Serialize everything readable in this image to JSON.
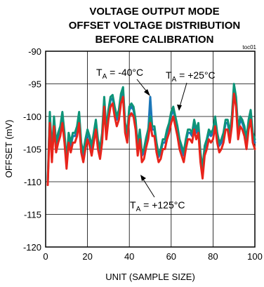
{
  "chart_data": {
    "type": "line",
    "title_lines": [
      "VOLTAGE OUTPUT MODE",
      "OFFSET VOLTAGE DISTRIBUTION",
      "BEFORE CALIBRATION"
    ],
    "note": "toc01",
    "xlabel": "UNIT (SAMPLE SIZE)",
    "ylabel": "OFFSET (mV)",
    "xlim": [
      0,
      100
    ],
    "ylim": [
      -120,
      -90
    ],
    "x_ticks": [
      0,
      20,
      40,
      60,
      80,
      100
    ],
    "y_ticks": [
      -90,
      -95,
      -100,
      -105,
      -110,
      -115,
      -120
    ],
    "grid": true,
    "x": [
      1,
      2,
      3,
      4,
      5,
      6,
      7,
      8,
      9,
      10,
      11,
      12,
      13,
      14,
      15,
      16,
      17,
      18,
      19,
      20,
      21,
      22,
      23,
      24,
      25,
      26,
      27,
      28,
      29,
      30,
      31,
      32,
      33,
      34,
      35,
      36,
      37,
      38,
      39,
      40,
      41,
      42,
      43,
      44,
      45,
      46,
      47,
      48,
      49,
      50,
      51,
      52,
      53,
      54,
      55,
      56,
      57,
      58,
      59,
      60,
      61,
      62,
      63,
      64,
      65,
      66,
      67,
      68,
      69,
      70,
      71,
      72,
      73,
      74,
      75,
      76,
      77,
      78,
      79,
      80,
      81,
      82,
      83,
      84,
      85,
      86,
      87,
      88,
      89,
      90,
      91,
      92,
      93,
      94,
      95,
      96,
      97,
      98,
      99,
      100
    ],
    "series": [
      {
        "label_main": "T",
        "label_sub": "A",
        "label_rest": " = -40°C",
        "color": "#1b76b8",
        "values": [
          -110,
          -99.8,
          -106,
          -100.5,
          -104.5,
          -103,
          -102,
          -99.8,
          -103,
          -107.2,
          -103,
          -104.5,
          -103,
          -103,
          -102,
          -99.8,
          -104.5,
          -106,
          -104,
          -102.5,
          -103.5,
          -105,
          -103,
          -101,
          -104,
          -105.5,
          -103,
          -97.5,
          -102.5,
          -99.5,
          -97.5,
          -97.2,
          -99,
          -100.5,
          -99.5,
          -97,
          -96,
          -101.5,
          -103,
          -99,
          -98.5,
          -99,
          -101,
          -105,
          -102.5,
          -106,
          -105.5,
          -103.8,
          -102.5,
          -97,
          -102,
          -102,
          -104.5,
          -106.2,
          -105.5,
          -104,
          -104,
          -102.5,
          -101.5,
          -99.8,
          -99,
          -100.5,
          -102,
          -104,
          -105,
          -106,
          -104,
          -102.5,
          -102.5,
          -103,
          -101,
          -102.5,
          -101.5,
          -106,
          -108.5,
          -105,
          -104,
          -102.5,
          -103,
          -102.5,
          -100.5,
          -103,
          -104.5,
          -104,
          -103,
          -101,
          -101,
          -103,
          -100.5,
          -95.5,
          -97.5,
          -102.5,
          -100.5,
          -101,
          -102,
          -104,
          -101,
          -99.5,
          -103,
          -104
        ]
      },
      {
        "label_main": "T",
        "label_sub": "A",
        "label_rest": " = +25°C",
        "color": "#0e9478",
        "values": [
          -110,
          -99.3,
          -105.5,
          -100,
          -104,
          -102.5,
          -101.5,
          -99.3,
          -102.5,
          -106.8,
          -102.5,
          -104,
          -102.5,
          -102.5,
          -101.5,
          -99.3,
          -104,
          -105.5,
          -103.5,
          -102,
          -103,
          -104.5,
          -102.5,
          -100.5,
          -103.5,
          -105,
          -102.5,
          -97,
          -102,
          -99,
          -97,
          -96.7,
          -98.5,
          -100,
          -99,
          -96.5,
          -95.5,
          -101,
          -102.5,
          -98.5,
          -98,
          -98.5,
          -100.5,
          -104.5,
          -102,
          -105.5,
          -105,
          -103.3,
          -102,
          -100,
          -101.5,
          -101.5,
          -104,
          -105.8,
          -105,
          -103.5,
          -103.5,
          -102,
          -101,
          -99.3,
          -98.5,
          -100,
          -101.5,
          -103.5,
          -104.5,
          -105.5,
          -103.5,
          -102,
          -102,
          -102.5,
          -100.5,
          -102,
          -101,
          -105.5,
          -108,
          -104.5,
          -103.5,
          -102,
          -102.5,
          -102,
          -100,
          -102.5,
          -104,
          -103.5,
          -102.5,
          -100.5,
          -100.5,
          -102.5,
          -100,
          -95,
          -97,
          -102,
          -100,
          -100.5,
          -101.5,
          -103.5,
          -100.5,
          -99,
          -102.5,
          -103.5
        ]
      },
      {
        "label_main": "T",
        "label_sub": "A",
        "label_rest": " = +125°C",
        "color": "#e8241b",
        "values": [
          -110.5,
          -101,
          -107,
          -101.5,
          -105.5,
          -104,
          -103,
          -101,
          -104,
          -108,
          -104,
          -105.5,
          -104,
          -104,
          -103,
          -101,
          -105.5,
          -107,
          -105,
          -103.5,
          -104.5,
          -106,
          -104,
          -102,
          -105,
          -106.5,
          -104,
          -98.5,
          -103.5,
          -100.5,
          -98.5,
          -98,
          -100,
          -101.5,
          -100.5,
          -98,
          -97,
          -102.5,
          -104,
          -100,
          -99.5,
          -100,
          -102,
          -106,
          -103.5,
          -107,
          -106.5,
          -104.8,
          -103.5,
          -101,
          -103,
          -103,
          -105.5,
          -107,
          -106.5,
          -105,
          -105,
          -103.5,
          -102.5,
          -101,
          -100,
          -101.5,
          -103,
          -105,
          -106,
          -107,
          -105,
          -103.5,
          -103.5,
          -104,
          -102,
          -103.5,
          -102.5,
          -107,
          -109.5,
          -106,
          -105,
          -103.5,
          -104,
          -103.5,
          -101.5,
          -104,
          -105.5,
          -105,
          -104,
          -102,
          -102,
          -104,
          -101.5,
          -96.5,
          -98.5,
          -103.5,
          -101.5,
          -102,
          -103,
          -105,
          -102,
          -100.5,
          -104,
          -105
        ]
      }
    ]
  }
}
